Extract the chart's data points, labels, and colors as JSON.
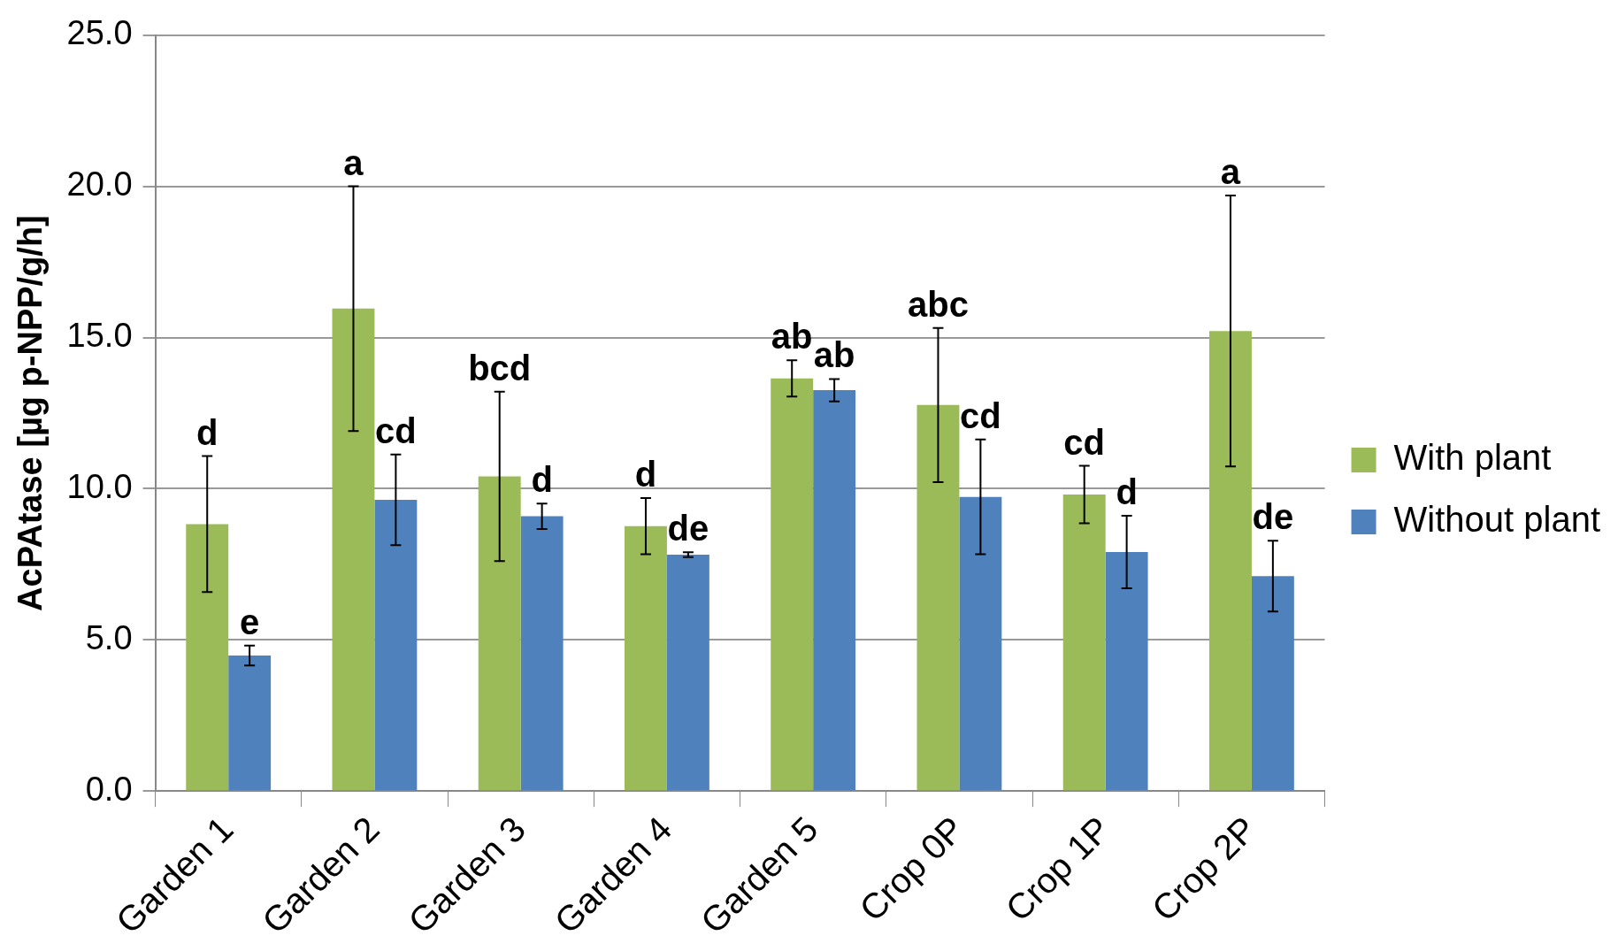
{
  "chart_data": {
    "type": "bar",
    "ylabel": "AcPAtase [µg p-NPP/g/h]",
    "categories": [
      "Garden 1",
      "Garden 2",
      "Garden 3",
      "Garden 4",
      "Garden 5",
      "Crop 0P",
      "Crop 1P",
      "Crop 2P"
    ],
    "series": [
      {
        "name": "With plant",
        "color": "#9bbb59",
        "values": [
          8.83,
          15.96,
          10.41,
          8.76,
          13.65,
          12.77,
          9.81,
          15.22
        ],
        "errors": [
          2.25,
          4.05,
          2.8,
          0.93,
          0.6,
          2.55,
          0.95,
          4.48
        ]
      },
      {
        "name": "Without plant",
        "color": "#4f81bd",
        "values": [
          4.48,
          9.63,
          9.09,
          7.82,
          13.26,
          9.73,
          7.91,
          7.11
        ],
        "errors": [
          0.33,
          1.5,
          0.42,
          0.08,
          0.37,
          1.9,
          1.2,
          1.17
        ]
      }
    ],
    "ylim": [
      0,
      25
    ],
    "yticks": [
      {
        "value": 0,
        "label": "0.0"
      },
      {
        "value": 5,
        "label": "5.0"
      },
      {
        "value": 10,
        "label": "10.0"
      },
      {
        "value": 15,
        "label": "15.0"
      },
      {
        "value": 20,
        "label": "20.0"
      },
      {
        "value": 25,
        "label": "25.0"
      }
    ],
    "grid": "y",
    "legend": "right",
    "annotations": [
      "d",
      "e",
      "a",
      "cd",
      "bcd",
      "d",
      "d",
      "de",
      "ab",
      "ab",
      "abc",
      "cd",
      "cd",
      "d",
      "a",
      "de"
    ]
  }
}
